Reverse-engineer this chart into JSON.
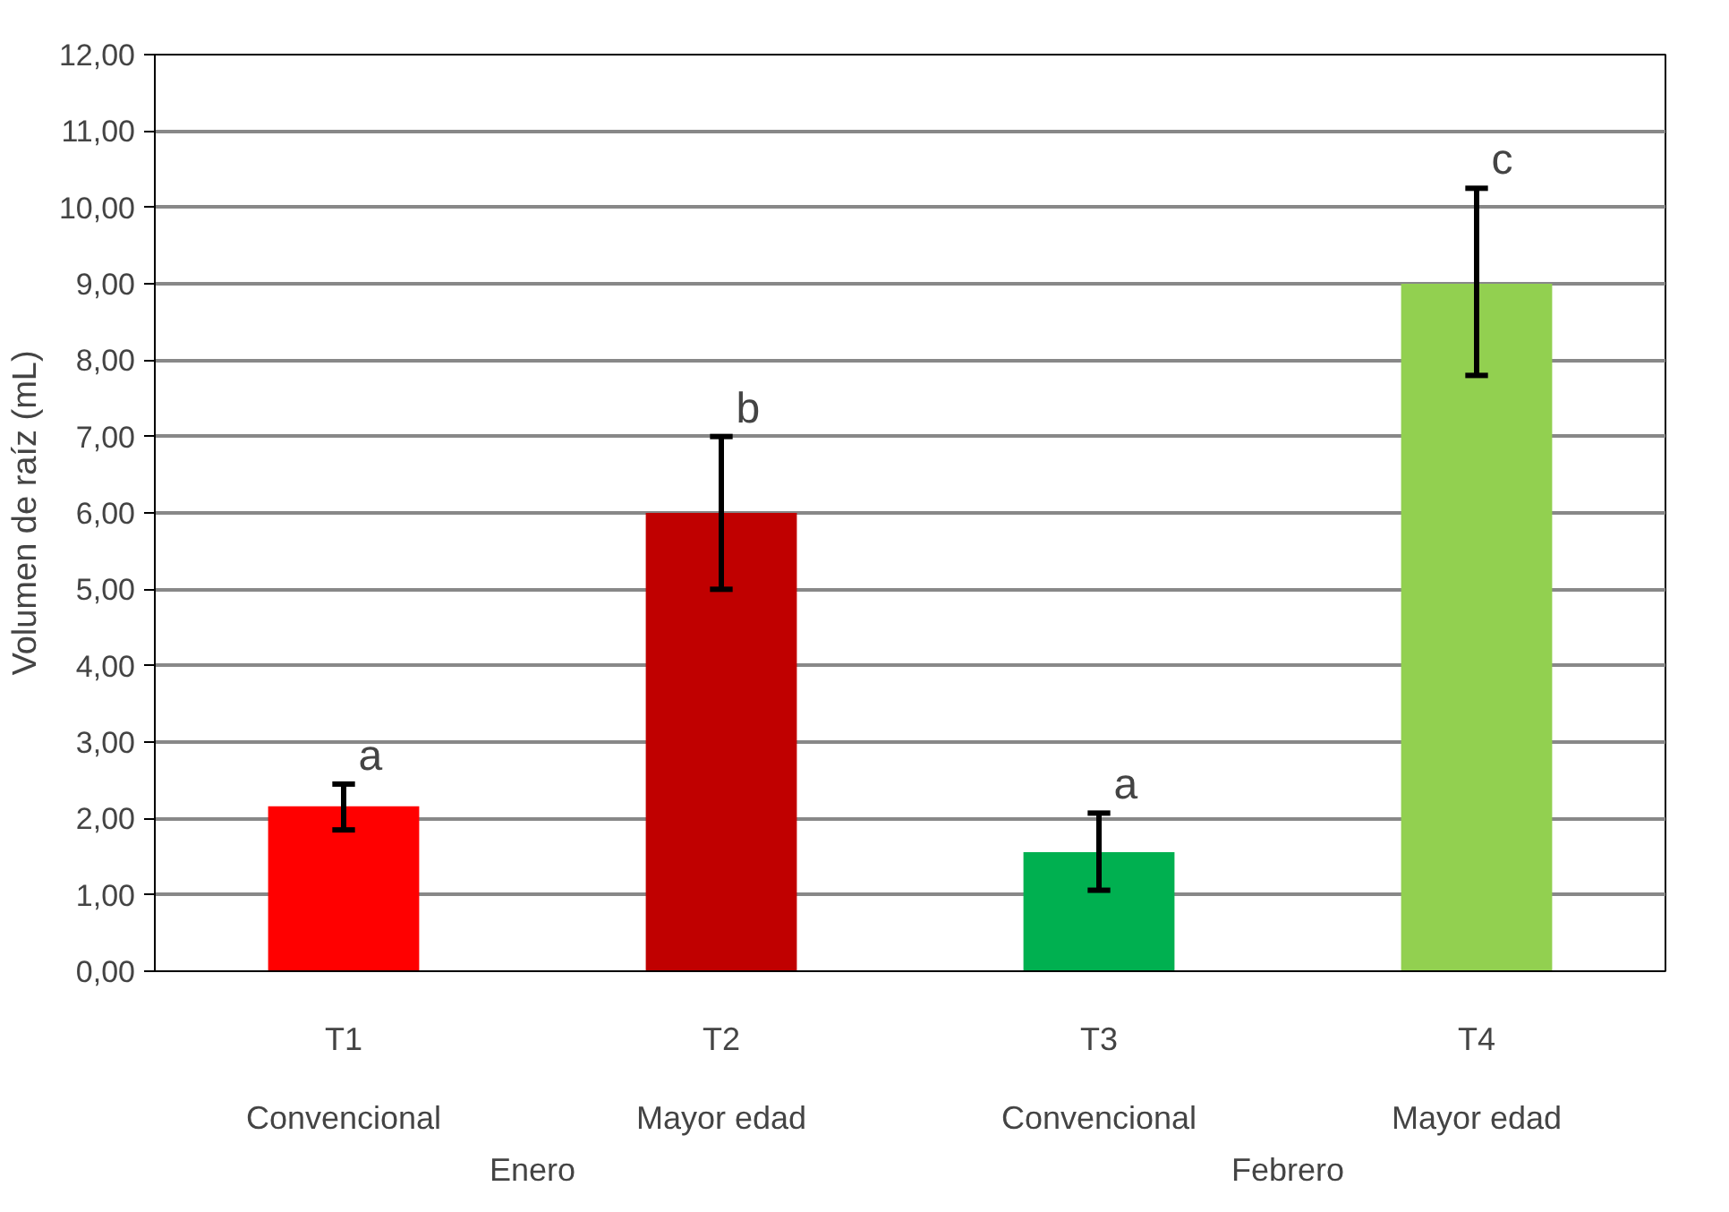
{
  "chart_data": {
    "type": "bar",
    "ylabel": "Volumen de raíz (mL)",
    "categories": [
      "T1\nConvencional",
      "T2\nMayor edad",
      "T3\nConvencional",
      "T4\nMayor edad"
    ],
    "values": [
      2.16,
      6.0,
      1.56,
      9.0
    ],
    "colors": [
      "#ff0000",
      "#c00000",
      "#00b050",
      "#92d050"
    ],
    "errors": [
      [
        1.85,
        2.45
      ],
      [
        5.0,
        7.0
      ],
      [
        1.06,
        2.07
      ],
      [
        7.8,
        10.25
      ]
    ],
    "ylim": [
      0,
      12
    ],
    "yticks": [
      {
        "value": 0,
        "label": "0,00"
      },
      {
        "value": 1,
        "label": "1,00"
      },
      {
        "value": 2,
        "label": "2,00"
      },
      {
        "value": 3,
        "label": "3,00"
      },
      {
        "value": 4,
        "label": "4,00"
      },
      {
        "value": 5,
        "label": "5,00"
      },
      {
        "value": 6,
        "label": "6,00"
      },
      {
        "value": 7,
        "label": "7,00"
      },
      {
        "value": 8,
        "label": "8,00"
      },
      {
        "value": 9,
        "label": "9,00"
      },
      {
        "value": 10,
        "label": "10,00"
      },
      {
        "value": 11,
        "label": "11,00"
      },
      {
        "value": 12,
        "label": "12,00"
      }
    ],
    "grid": "y",
    "annotations": [
      {
        "text": "a",
        "x": "T1\nConvencional",
        "y": 2.45
      },
      {
        "text": "b",
        "x": "T2\nMayor edad",
        "y": 7.0
      },
      {
        "text": "a",
        "x": "T3\nConvencional",
        "y": 2.07
      },
      {
        "text": "c",
        "x": "T4\nMayor edad",
        "y": 10.25
      },
      "Enero",
      "Febrero"
    ]
  }
}
